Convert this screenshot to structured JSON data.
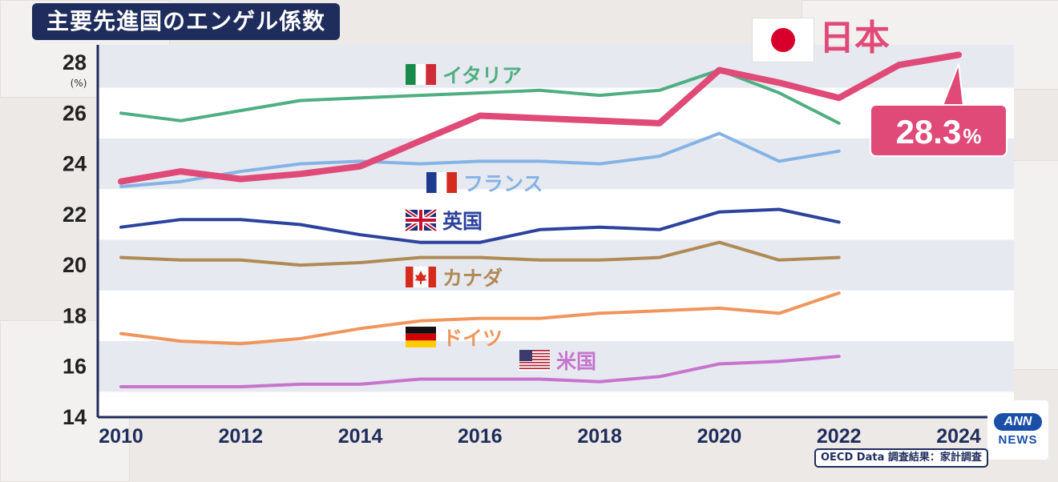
{
  "title": "主要先進国のエンゲル係数",
  "source": "OECD Data 調査結果：家計調査",
  "logo": {
    "line1": "ANN",
    "line2": "NEWS"
  },
  "callout": {
    "value": "28.3",
    "unit": "%"
  },
  "colors": {
    "japan": "#e04a78",
    "italy": "#4fae82",
    "france": "#86b3e6",
    "uk": "#2c429e",
    "canada": "#b08a55",
    "germany": "#f0955c",
    "usa": "#c774cf",
    "title_bg": "#1f2d5c",
    "band": "#e6e9ef"
  },
  "chart_data": {
    "type": "line",
    "title": "主要先進国のエンゲル係数",
    "ylabel": "(%)",
    "ylim": [
      14,
      28
    ],
    "yticks": [
      14,
      16,
      18,
      20,
      22,
      24,
      26,
      28
    ],
    "xticks": [
      2010,
      2012,
      2014,
      2016,
      2018,
      2020,
      2022,
      2024
    ],
    "xlim": [
      2010,
      2024
    ],
    "grid": "alternating horizontal bands",
    "series": [
      {
        "name": "日本",
        "key": "japan",
        "flag": "jp",
        "x": [
          2010,
          2011,
          2012,
          2013,
          2014,
          2015,
          2016,
          2017,
          2018,
          2019,
          2020,
          2021,
          2022,
          2023,
          2024
        ],
        "y": [
          23.3,
          23.7,
          23.4,
          23.6,
          23.9,
          24.9,
          25.9,
          25.8,
          25.7,
          25.6,
          27.7,
          27.2,
          26.6,
          27.9,
          28.3
        ]
      },
      {
        "name": "イタリア",
        "key": "italy",
        "flag": "it",
        "x": [
          2010,
          2011,
          2012,
          2013,
          2014,
          2015,
          2016,
          2017,
          2018,
          2019,
          2020,
          2021,
          2022
        ],
        "y": [
          26.0,
          25.7,
          26.1,
          26.5,
          26.6,
          26.7,
          26.8,
          26.9,
          26.7,
          26.9,
          27.7,
          26.8,
          25.6
        ]
      },
      {
        "name": "フランス",
        "key": "france",
        "flag": "fr",
        "x": [
          2010,
          2011,
          2012,
          2013,
          2014,
          2015,
          2016,
          2017,
          2018,
          2019,
          2020,
          2021,
          2022
        ],
        "y": [
          23.1,
          23.3,
          23.7,
          24.0,
          24.1,
          24.0,
          24.1,
          24.1,
          24.0,
          24.3,
          25.2,
          24.1,
          24.5
        ]
      },
      {
        "name": "英国",
        "key": "uk",
        "flag": "gb",
        "x": [
          2010,
          2011,
          2012,
          2013,
          2014,
          2015,
          2016,
          2017,
          2018,
          2019,
          2020,
          2021,
          2022
        ],
        "y": [
          21.5,
          21.8,
          21.8,
          21.6,
          21.2,
          20.9,
          20.9,
          21.4,
          21.5,
          21.4,
          22.1,
          22.2,
          21.7
        ]
      },
      {
        "name": "カナダ",
        "key": "canada",
        "flag": "ca",
        "x": [
          2010,
          2011,
          2012,
          2013,
          2014,
          2015,
          2016,
          2017,
          2018,
          2019,
          2020,
          2021,
          2022
        ],
        "y": [
          20.3,
          20.2,
          20.2,
          20.0,
          20.1,
          20.3,
          20.3,
          20.2,
          20.2,
          20.3,
          20.9,
          20.2,
          20.3
        ]
      },
      {
        "name": "ドイツ",
        "key": "germany",
        "flag": "de",
        "x": [
          2010,
          2011,
          2012,
          2013,
          2014,
          2015,
          2016,
          2017,
          2018,
          2019,
          2020,
          2021,
          2022
        ],
        "y": [
          17.3,
          17.0,
          16.9,
          17.1,
          17.5,
          17.8,
          17.9,
          17.9,
          18.1,
          18.2,
          18.3,
          18.1,
          18.9
        ]
      },
      {
        "name": "米国",
        "key": "usa",
        "flag": "us",
        "x": [
          2010,
          2011,
          2012,
          2013,
          2014,
          2015,
          2016,
          2017,
          2018,
          2019,
          2020,
          2021,
          2022
        ],
        "y": [
          15.2,
          15.2,
          15.2,
          15.3,
          15.3,
          15.5,
          15.5,
          15.5,
          15.4,
          15.6,
          16.1,
          16.2,
          16.4
        ]
      }
    ]
  }
}
